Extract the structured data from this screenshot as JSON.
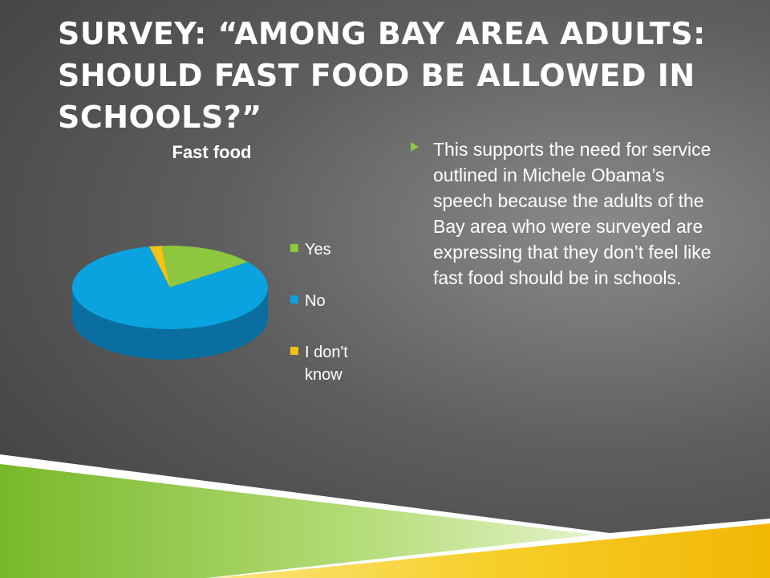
{
  "slide": {
    "title": "Survey: “among bay area adults: should fast food be allowed in schools?”",
    "bullet": "This supports the need for service outlined in Michele Obama’s speech because the adults of the Bay area who were surveyed are expressing that they don’t feel like fast food should be in schools."
  },
  "colors": {
    "yes": "#8dc63f",
    "no": "#0aa3e0",
    "dont_know": "#f5c211",
    "accent_green": "#8dc63f",
    "accent_yellow": "#f4c20d"
  },
  "chart_data": {
    "type": "pie",
    "title": "Fast food",
    "categories": [
      "Yes",
      "No",
      "I don't know"
    ],
    "values": [
      16,
      82,
      2
    ],
    "unit": "percent (estimated)",
    "legend": "right",
    "style": "3d"
  }
}
